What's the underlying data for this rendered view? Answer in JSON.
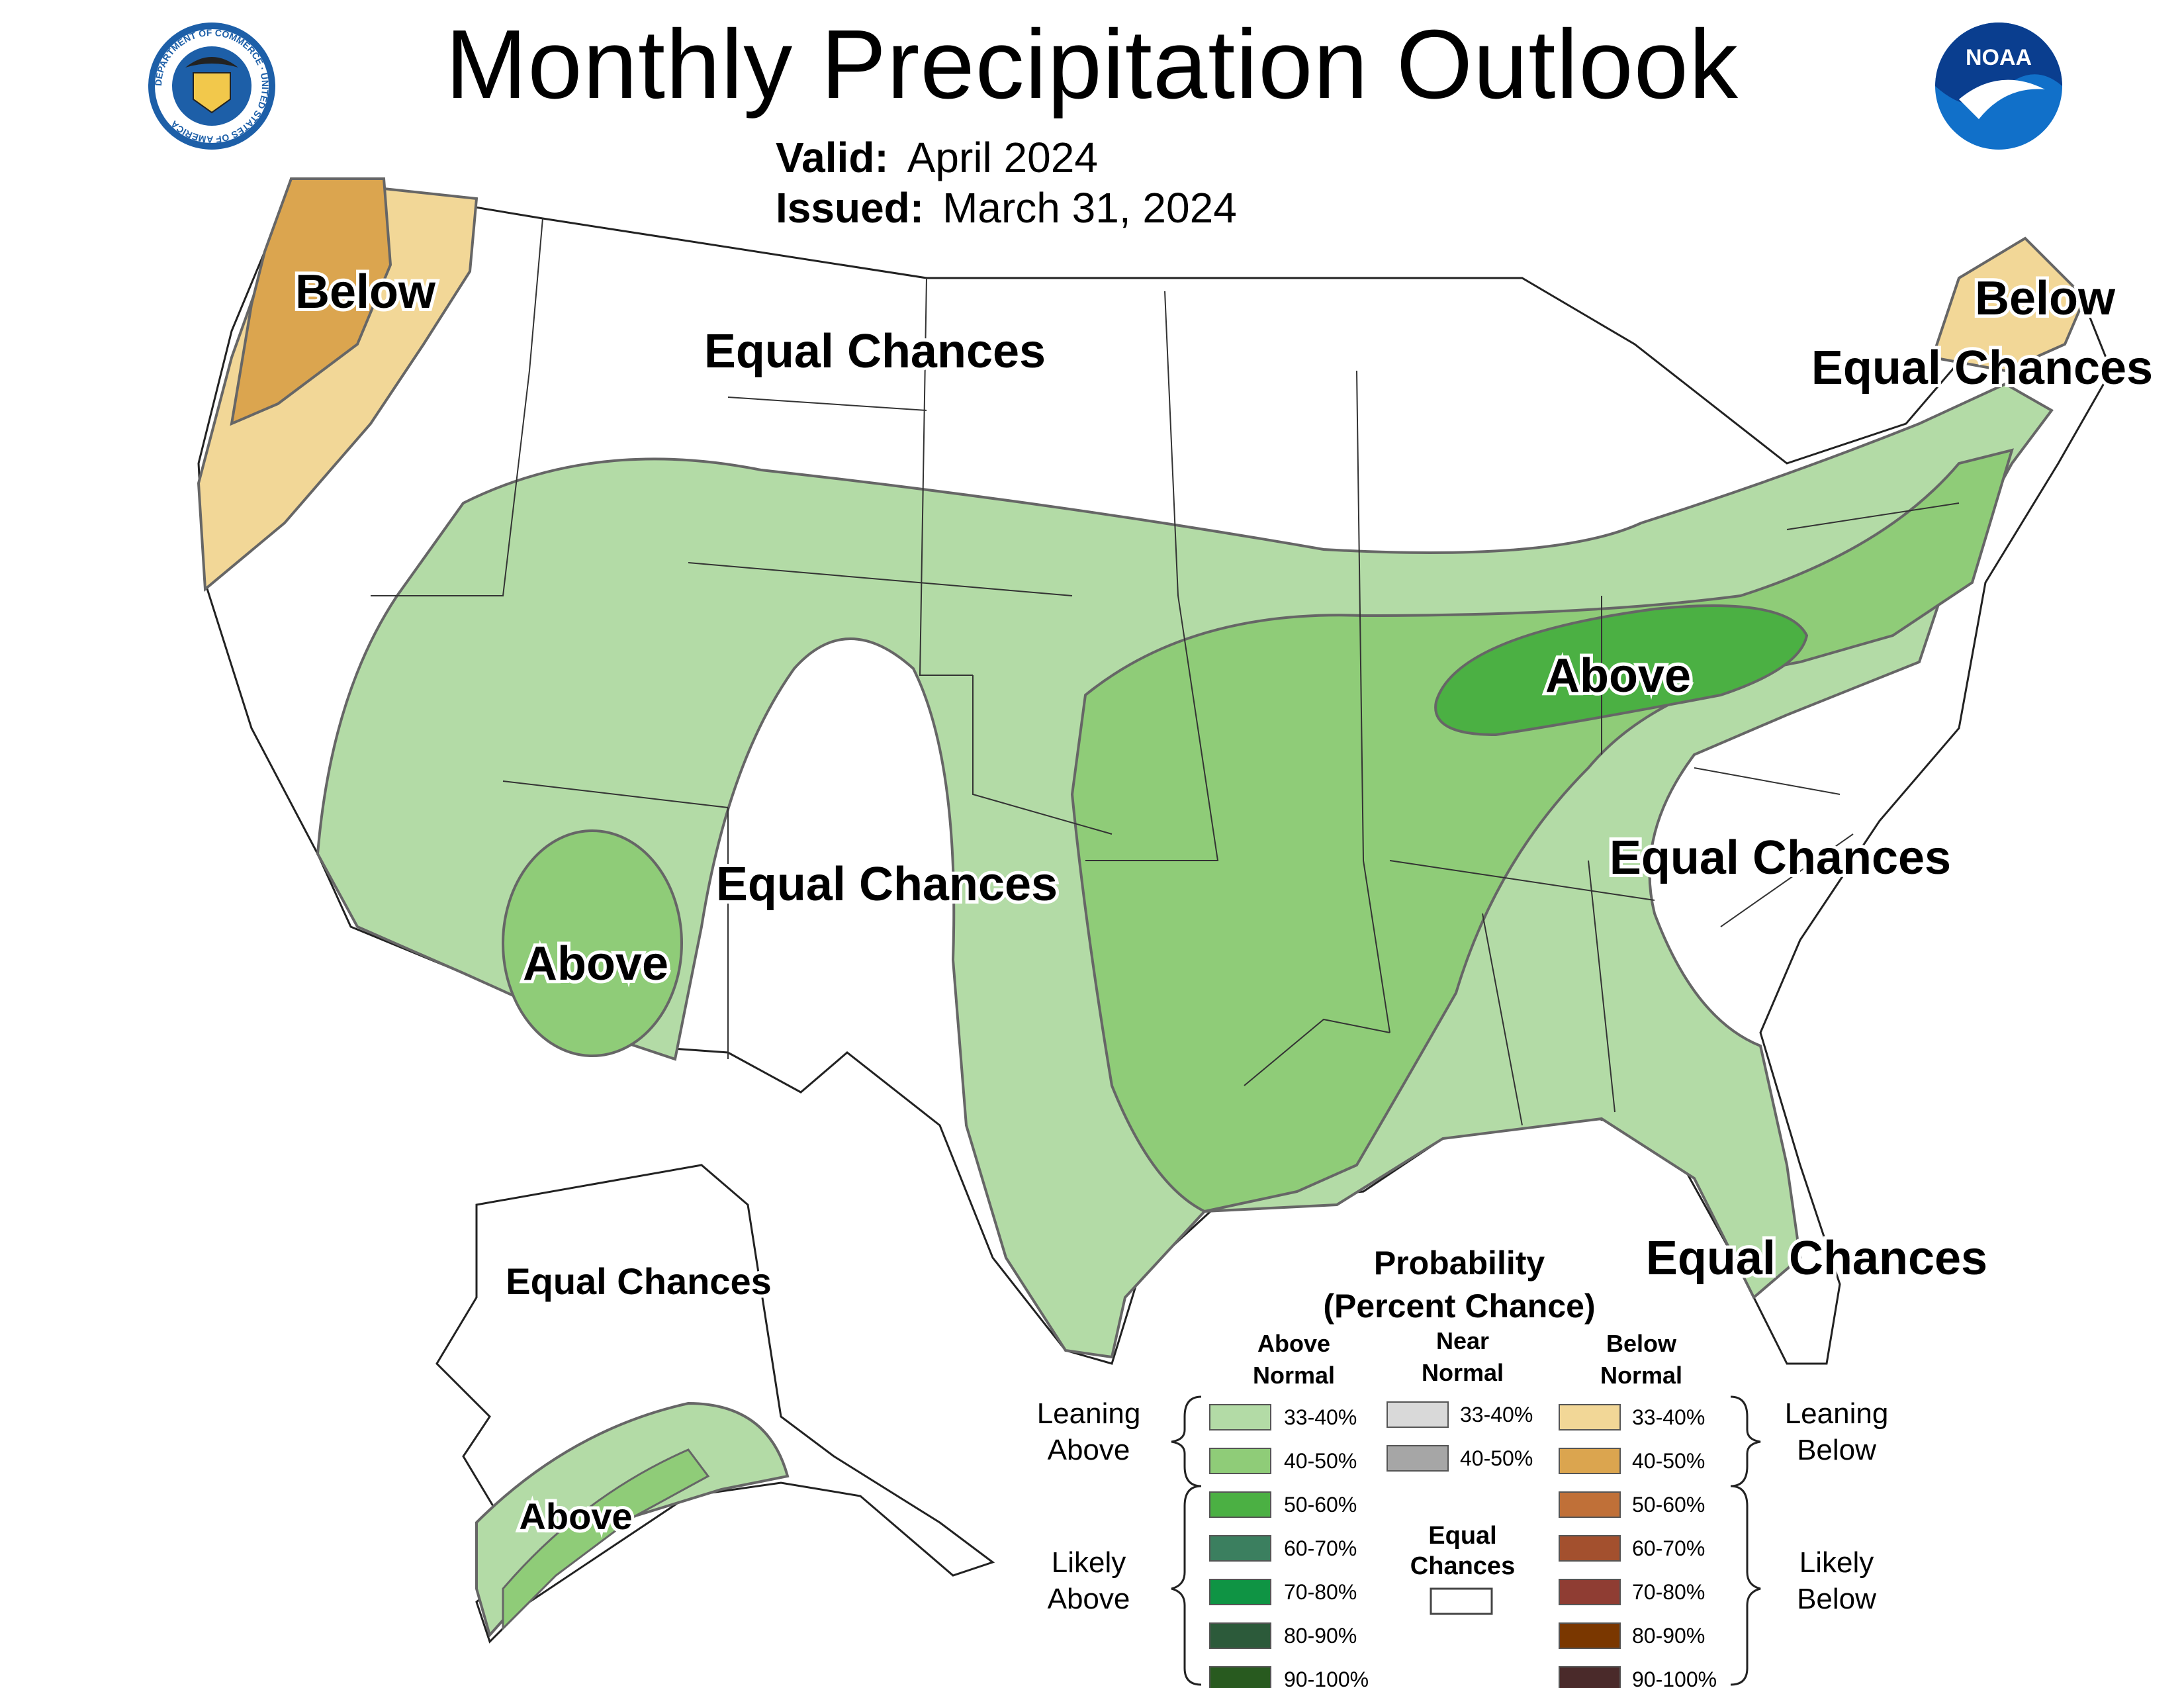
{
  "header": {
    "title": "Monthly Precipitation Outlook",
    "valid_label": "Valid:",
    "valid_value": "April 2024",
    "issued_label": "Issued:",
    "issued_value": "March 31, 2024",
    "commerce_seal_text": "DEPARTMENT OF COMMERCE · UNITED STATES OF AMERICA",
    "noaa_logo_text": "NOAA"
  },
  "map": {
    "region_labels": {
      "below_northwest": "Below",
      "equal_north_central": "Equal Chances",
      "below_maine": "Below",
      "equal_new_england": "Equal Chances",
      "above_ohio_valley": "Above",
      "above_arizona": "Above",
      "equal_southern_plains": "Equal Chances",
      "equal_carolinas": "Equal Chances",
      "equal_florida": "Equal Chances",
      "equal_alaska": "Equal Chances",
      "above_south_alaska": "Above"
    },
    "colors": {
      "land": "#ffffff",
      "state_lines": "#333333",
      "contour_lines": "#666666",
      "above_33_40": "#b3dba6",
      "above_40_50": "#8fcc78",
      "above_50_60": "#4bb043",
      "below_33_40": "#f2d797",
      "below_40_50": "#dba54f"
    }
  },
  "legend": {
    "title_line1": "Probability",
    "title_line2": "(Percent Chance)",
    "col_above_line1": "Above",
    "col_above_line2": "Normal",
    "col_near_line1": "Near",
    "col_near_line2": "Normal",
    "col_below_line1": "Below",
    "col_below_line2": "Normal",
    "leaning_above_line1": "Leaning",
    "leaning_above_line2": "Above",
    "likely_above_line1": "Likely",
    "likely_above_line2": "Above",
    "leaning_below_line1": "Leaning",
    "leaning_below_line2": "Below",
    "likely_below_line1": "Likely",
    "likely_below_line2": "Below",
    "equal_line1": "Equal",
    "equal_line2": "Chances",
    "above": [
      {
        "label": "33-40%",
        "color": "#b3dba6"
      },
      {
        "label": "40-50%",
        "color": "#8fcc78"
      },
      {
        "label": "50-60%",
        "color": "#4bb043"
      },
      {
        "label": "60-70%",
        "color": "#3b7f5f"
      },
      {
        "label": "70-80%",
        "color": "#0f9444"
      },
      {
        "label": "80-90%",
        "color": "#2c5a3a"
      },
      {
        "label": "90-100%",
        "color": "#285a1f"
      }
    ],
    "near": [
      {
        "label": "33-40%",
        "color": "#d9d9d9"
      },
      {
        "label": "40-50%",
        "color": "#a6a6a6"
      }
    ],
    "below": [
      {
        "label": "33-40%",
        "color": "#f2d797"
      },
      {
        "label": "40-50%",
        "color": "#dba54f"
      },
      {
        "label": "50-60%",
        "color": "#c07038"
      },
      {
        "label": "60-70%",
        "color": "#a3502e"
      },
      {
        "label": "70-80%",
        "color": "#8f3d33"
      },
      {
        "label": "80-90%",
        "color": "#7a3700"
      },
      {
        "label": "90-100%",
        "color": "#4a2a2a"
      }
    ]
  }
}
